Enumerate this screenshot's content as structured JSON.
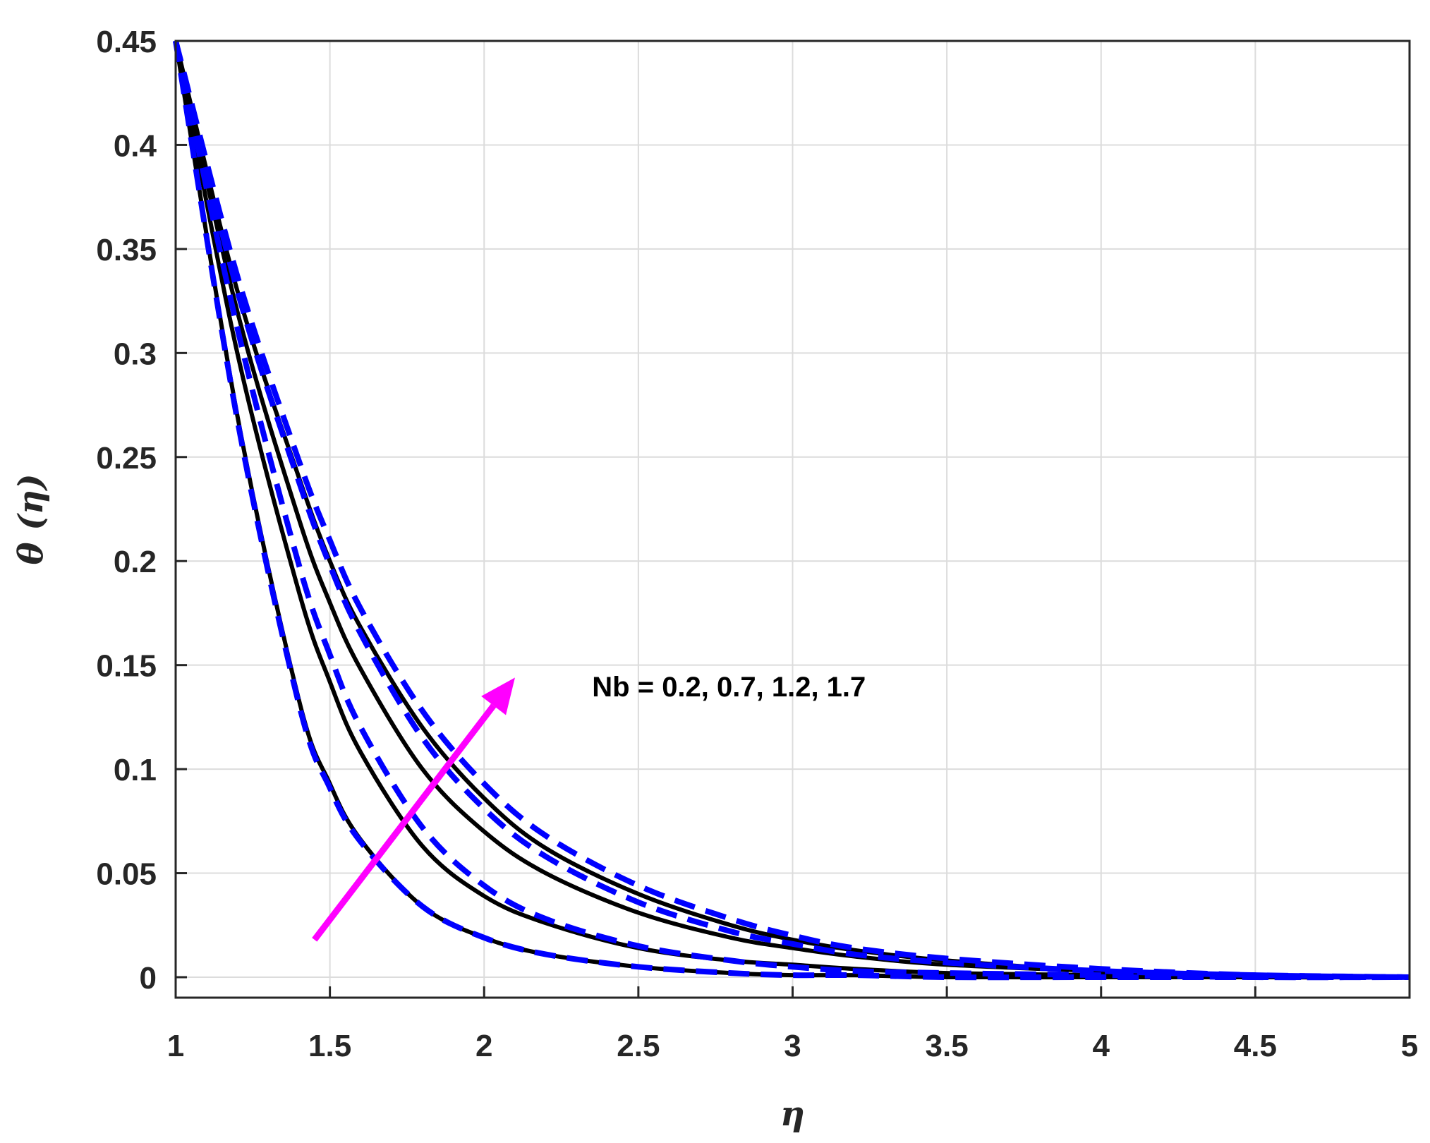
{
  "chart_data": {
    "type": "line",
    "xlabel": "η",
    "ylabel": "θ  (η)",
    "xlim": [
      1,
      5
    ],
    "ylim": [
      0,
      0.45
    ],
    "xticks": [
      1,
      1.5,
      2,
      2.5,
      3,
      3.5,
      4,
      4.5,
      5
    ],
    "xtick_labels": [
      "1",
      "1.5",
      "2",
      "2.5",
      "3",
      "3.5",
      "4",
      "4.5",
      "5"
    ],
    "yticks": [
      0,
      0.05,
      0.1,
      0.15,
      0.2,
      0.25,
      0.3,
      0.35,
      0.4,
      0.45
    ],
    "ytick_labels": [
      "0",
      "0.05",
      "0.1",
      "0.15",
      "0.2",
      "0.25",
      "0.3",
      "0.35",
      "0.4",
      "0.45"
    ],
    "grid": true,
    "x": [
      1,
      1.2,
      1.4,
      1.5,
      1.6,
      1.8,
      2,
      2.2,
      2.5,
      2.8,
      3,
      3.2,
      3.5,
      4,
      4.5,
      5
    ],
    "series": [
      {
        "style": "solid",
        "color": "#000000",
        "values": [
          0.45,
          0.27,
          0.133,
          0.093,
          0.066,
          0.034,
          0.019,
          0.011,
          0.005,
          0.002,
          0.001,
          0.001,
          0.0,
          0.0,
          0.0,
          0.0
        ]
      },
      {
        "style": "solid",
        "color": "#000000",
        "values": [
          0.45,
          0.3,
          0.185,
          0.142,
          0.108,
          0.063,
          0.039,
          0.026,
          0.014,
          0.008,
          0.006,
          0.004,
          0.002,
          0.001,
          0.0,
          0.0
        ]
      },
      {
        "style": "solid",
        "color": "#000000",
        "values": [
          0.45,
          0.32,
          0.22,
          0.18,
          0.148,
          0.1,
          0.07,
          0.05,
          0.031,
          0.019,
          0.014,
          0.01,
          0.006,
          0.003,
          0.001,
          0.0
        ]
      },
      {
        "style": "solid",
        "color": "#000000",
        "values": [
          0.45,
          0.33,
          0.24,
          0.2,
          0.168,
          0.12,
          0.086,
          0.062,
          0.04,
          0.025,
          0.018,
          0.013,
          0.008,
          0.003,
          0.001,
          0.0
        ]
      },
      {
        "style": "dashed",
        "color": "#0000ff",
        "values": [
          0.45,
          0.268,
          0.131,
          0.091,
          0.065,
          0.034,
          0.019,
          0.011,
          0.005,
          0.002,
          0.001,
          0.001,
          0.0,
          0.0,
          0.0,
          0.0
        ]
      },
      {
        "style": "dashed",
        "color": "#0000ff",
        "values": [
          0.45,
          0.312,
          0.198,
          0.155,
          0.12,
          0.072,
          0.044,
          0.028,
          0.015,
          0.008,
          0.005,
          0.003,
          0.002,
          0.001,
          0.0,
          0.0
        ]
      },
      {
        "style": "dashed",
        "color": "#0000ff",
        "values": [
          0.45,
          0.33,
          0.238,
          0.198,
          0.165,
          0.115,
          0.081,
          0.058,
          0.036,
          0.022,
          0.016,
          0.011,
          0.007,
          0.003,
          0.001,
          0.0
        ]
      },
      {
        "style": "dashed",
        "color": "#0000ff",
        "values": [
          0.45,
          0.337,
          0.248,
          0.21,
          0.177,
          0.128,
          0.093,
          0.068,
          0.044,
          0.028,
          0.02,
          0.014,
          0.009,
          0.004,
          0.001,
          0.0
        ]
      }
    ],
    "annotation": {
      "text": "Nb = 0.2, 0.7, 1.2, 1.7",
      "text_at": [
        2.35,
        0.135
      ],
      "arrow_from": [
        1.45,
        0.018
      ],
      "arrow_to": [
        2.1,
        0.144
      ],
      "arrow_color": "#ff00ff"
    }
  }
}
